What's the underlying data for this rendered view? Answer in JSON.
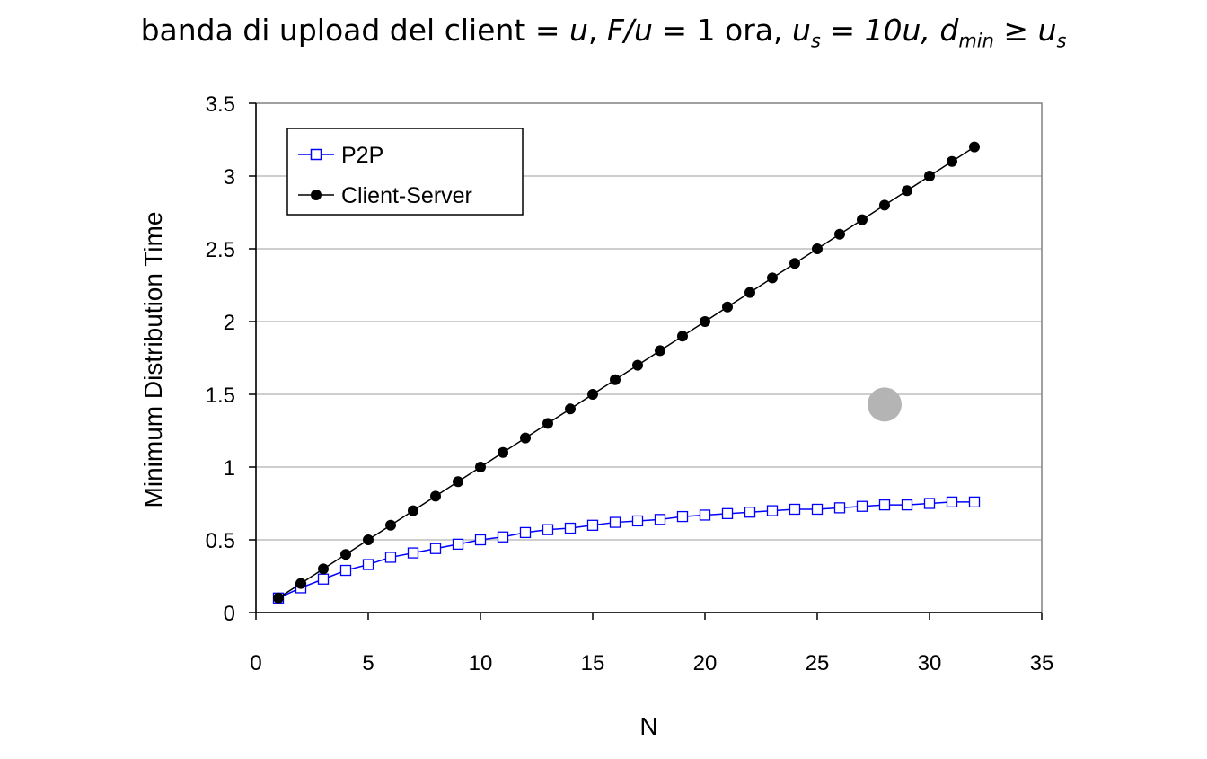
{
  "title": {
    "part1": "banda di upload del client = ",
    "u1": "u",
    "part2": ",  ",
    "fu": "F/u",
    "part3": " = 1 ora,  ",
    "us_base": "u",
    "us_sub": "s",
    "us_eq": " = 10u,  ",
    "dmin_base": "d",
    "dmin_sub": "min",
    "dmin_rel": " ≥ ",
    "us2_base": "u",
    "us2_sub": "s"
  },
  "chart_data": {
    "type": "line",
    "xlabel": "N",
    "ylabel": "Minimum Distribution Time",
    "xlim": [
      0,
      35
    ],
    "ylim": [
      0,
      3.5
    ],
    "xticks": [
      0,
      5,
      10,
      15,
      20,
      25,
      30,
      35
    ],
    "yticks": [
      0,
      0.5,
      1,
      1.5,
      2,
      2.5,
      3,
      3.5
    ],
    "grid": "horizontal",
    "legend_position": "top-left",
    "x": [
      1,
      2,
      3,
      4,
      5,
      6,
      7,
      8,
      9,
      10,
      11,
      12,
      13,
      14,
      15,
      16,
      17,
      18,
      19,
      20,
      21,
      22,
      23,
      24,
      25,
      26,
      27,
      28,
      29,
      30,
      31,
      32
    ],
    "series": [
      {
        "name": "P2P",
        "color": "#0000ff",
        "marker": "open-square",
        "values": [
          0.1,
          0.17,
          0.23,
          0.29,
          0.33,
          0.38,
          0.41,
          0.44,
          0.47,
          0.5,
          0.52,
          0.55,
          0.57,
          0.58,
          0.6,
          0.62,
          0.63,
          0.64,
          0.66,
          0.67,
          0.68,
          0.69,
          0.7,
          0.71,
          0.71,
          0.72,
          0.73,
          0.74,
          0.74,
          0.75,
          0.76,
          0.76
        ]
      },
      {
        "name": "Client-Server",
        "color": "#000000",
        "marker": "filled-circle",
        "values": [
          0.1,
          0.2,
          0.3,
          0.4,
          0.5,
          0.6,
          0.7,
          0.8,
          0.9,
          1.0,
          1.1,
          1.2,
          1.3,
          1.4,
          1.5,
          1.6,
          1.7,
          1.8,
          1.9,
          2.0,
          2.1,
          2.2,
          2.3,
          2.4,
          2.5,
          2.6,
          2.7,
          2.8,
          2.9,
          3.0,
          3.1,
          3.2
        ]
      }
    ]
  },
  "overlay": {
    "color": "#b4b4b4",
    "x": 28,
    "y": 1.43
  }
}
